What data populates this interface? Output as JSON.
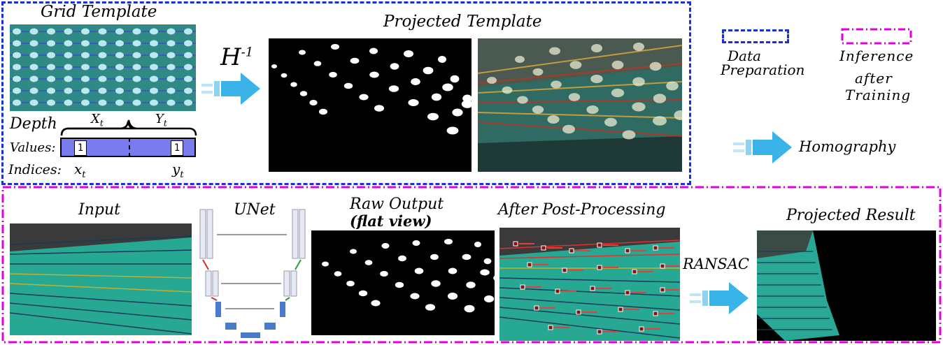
{
  "top": {
    "grid_title": "Grid Template",
    "projected_title": "Projected Template",
    "h_inverse_base": "H",
    "h_inverse_exp": "-1",
    "depth_label": "Depth",
    "values_label": "Values:",
    "indices_label": "Indices:",
    "x_brace_label": "X",
    "x_brace_sub": "t",
    "y_brace_label": "Y",
    "y_brace_sub": "t",
    "x_index": "x",
    "x_index_sub": "t",
    "y_index": "y",
    "y_index_sub": "t",
    "value_one_a": "1",
    "value_one_b": "1"
  },
  "legend": {
    "data_prep_line1": "Data",
    "data_prep_line2": "Preparation",
    "inference_line1": "Inference",
    "inference_line2": "after",
    "inference_line3": "Training",
    "homography": "Homography",
    "data_prep_color": "#1a2fd6",
    "inference_color": "#e000e0"
  },
  "bottom": {
    "input_title": "Input",
    "unet_title": "UNet",
    "raw_title_line1": "Raw Output",
    "raw_title_line2": "(flat view)",
    "post_title": "After Post-Processing",
    "ransac": "RANSAC",
    "result_title": "Projected Result"
  },
  "colors": {
    "arrow": "#3ab4e8",
    "pool_teal": "#2a9a8a",
    "grid_bg": "#2f8a86",
    "bar_fill": "#7b7bf0"
  }
}
